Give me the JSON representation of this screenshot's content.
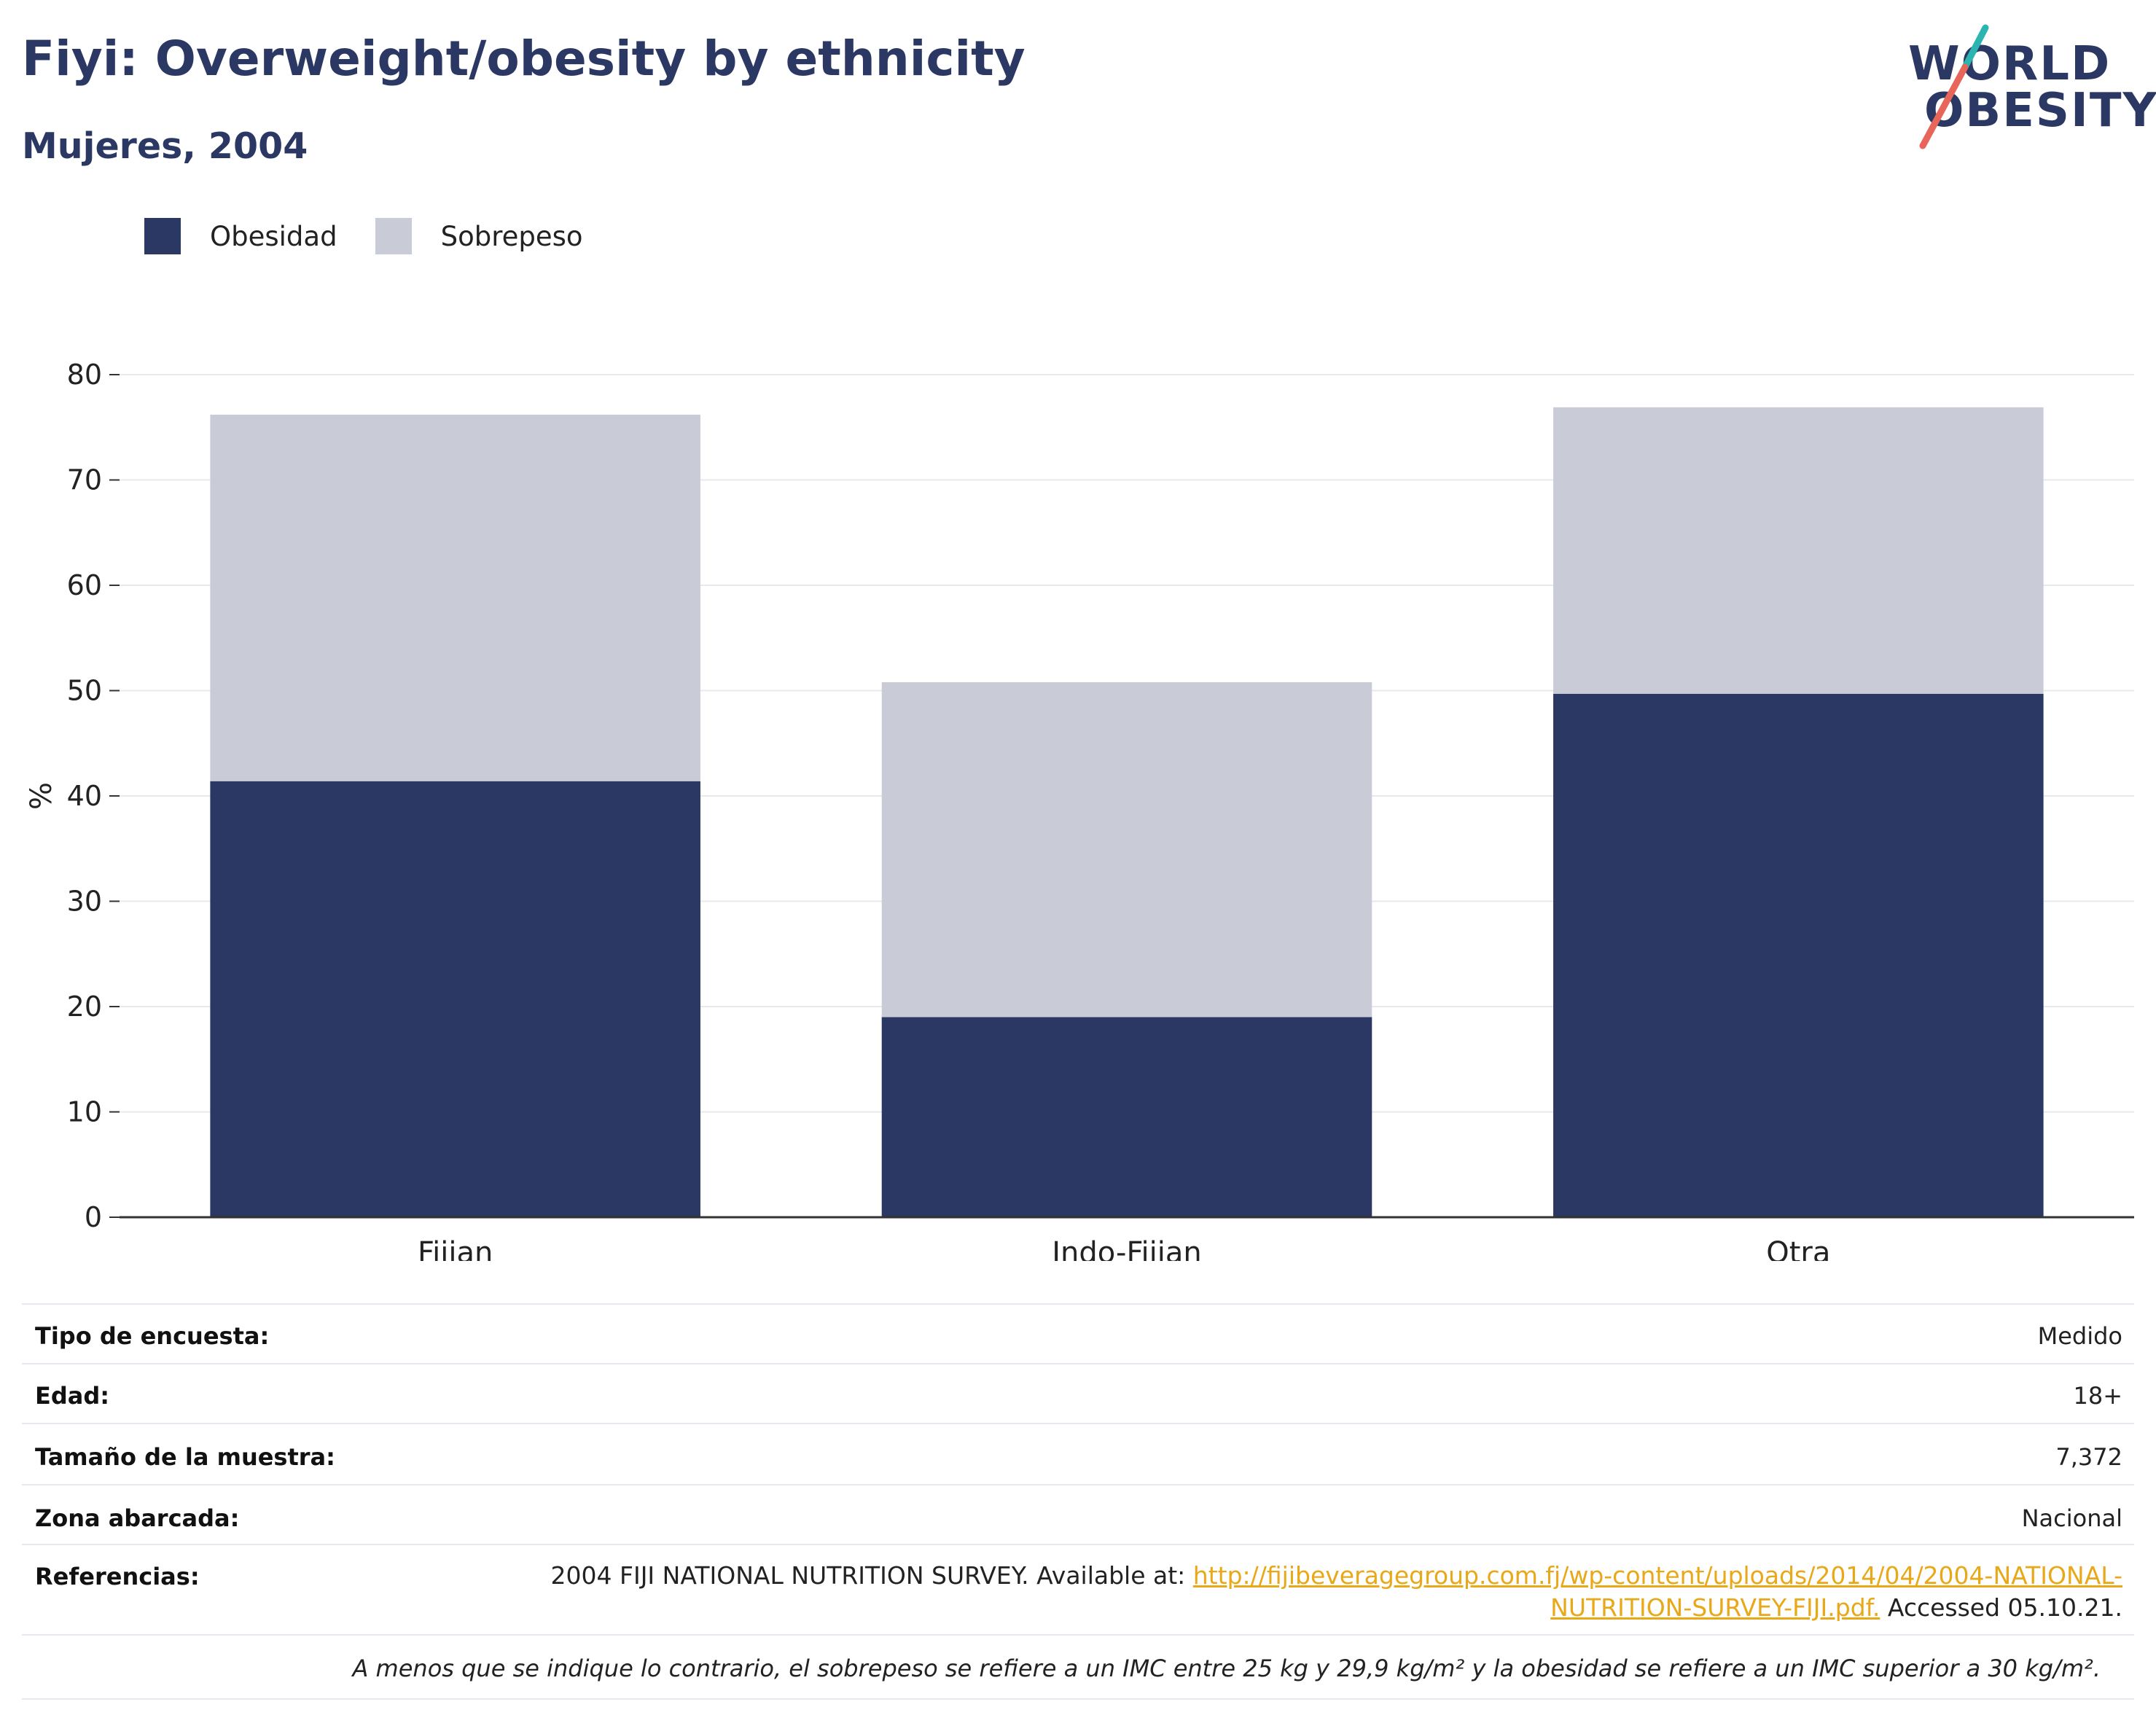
{
  "header": {
    "title": "Fiyi: Overweight/obesity by ethnicity",
    "subtitle": "Mujeres, 2004"
  },
  "logo": {
    "line1": "WORLD",
    "line2": "OBESITY"
  },
  "colors": {
    "obesity": "#2a3863",
    "overweight": "#c9cbd6",
    "link": "#e8a817",
    "logo_teal": "#2bb5b0",
    "logo_coral": "#e8655a"
  },
  "chart_data": {
    "type": "bar",
    "stacked": true,
    "categories": [
      "Fijian",
      "Indo-Fijian",
      "Otra"
    ],
    "series": [
      {
        "name": "Obesidad",
        "values": [
          41.4,
          19.0,
          49.7
        ]
      },
      {
        "name": "Sobrepeso",
        "values": [
          34.8,
          31.8,
          27.2
        ]
      }
    ],
    "ylabel": "%",
    "ylim": [
      0,
      80
    ],
    "yticks": [
      0,
      10,
      20,
      30,
      40,
      50,
      60,
      70,
      80
    ],
    "grid": true,
    "legend_position": "top-left"
  },
  "meta": {
    "survey_type": {
      "label": "Tipo de encuesta:",
      "value": "Medido"
    },
    "age": {
      "label": "Edad:",
      "value": "18+"
    },
    "sample_size": {
      "label": "Tamaño de la muestra:",
      "value": "7,372"
    },
    "area": {
      "label": "Zona abarcada:",
      "value": "Nacional"
    },
    "references": {
      "label": "Referencias:",
      "text_before": "2004 FIJI NATIONAL NUTRITION SURVEY. Available at: ",
      "link": "http://fijibeveragegroup.com.fj/wp-content/uploads/2014/04/2004-NATIONAL-NUTRITION-SURVEY-FIJI.pdf.",
      "text_after": " Accessed 05.10.21."
    }
  },
  "footnote": "A menos que se indique lo contrario, el sobrepeso se refiere a un IMC entre 25 kg y 29,9 kg/m² y la obesidad se refiere a un IMC superior a 30 kg/m²."
}
